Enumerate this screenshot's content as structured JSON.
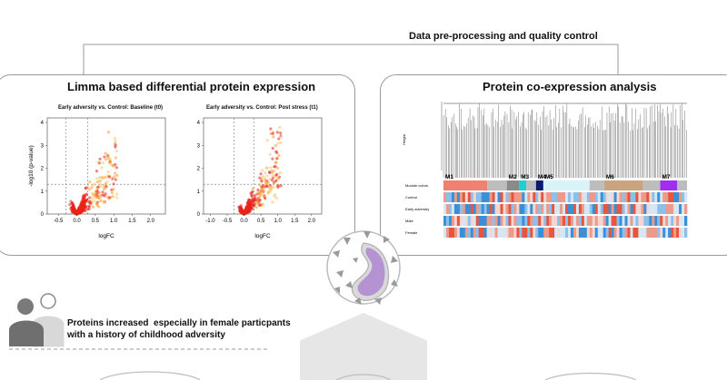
{
  "header": {
    "title": "Data pre-processing and quality control"
  },
  "left_panel": {
    "title": "Limma based differential protein expression",
    "plot1": {
      "title": "Early adversity vs. Control: Baseline (t0)"
    },
    "plot2": {
      "title": "Early adversity vs. Control: Post stress (t1)"
    },
    "ylabel": "-log10 (p-value)",
    "xlabel": "logFC"
  },
  "right_panel": {
    "title": "Protein co-expression analysis",
    "height_label": "Height",
    "row_labels": [
      "Module colors",
      "Control",
      "Early adversity",
      "Male",
      "Female"
    ],
    "modules": [
      "M1",
      "M2",
      "M3",
      "M4",
      "M5",
      "M6",
      "M7"
    ]
  },
  "bottom": {
    "text_line1": "Proteins increased  especially in female particpants",
    "text_line2": "with a history of childhood adversity"
  },
  "chart_data": [
    {
      "type": "scatter",
      "title": "Early adversity vs. Control: Baseline (t0)",
      "xlabel": "logFC",
      "ylabel": "-log10 (p-value)",
      "xlim": [
        -0.8,
        2.4
      ],
      "ylim": [
        0,
        4.2
      ],
      "xticks": [
        -0.5,
        0.0,
        0.5,
        1.0,
        1.5,
        2.0
      ],
      "yticks": [
        0,
        1,
        2,
        3,
        4
      ],
      "threshold_y": 1.3,
      "threshold_x": [
        -0.3,
        0.3
      ]
    },
    {
      "type": "scatter",
      "title": "Early adversity vs. Control: Post stress (t1)",
      "xlabel": "logFC",
      "ylabel": "",
      "xlim": [
        -1.2,
        2.3
      ],
      "ylim": [
        0,
        4.2
      ],
      "xticks": [
        -1.0,
        -0.5,
        0.0,
        0.5,
        1.0,
        1.5,
        2.0
      ],
      "yticks": [
        0,
        1,
        2,
        3,
        4
      ],
      "threshold_y": 1.3,
      "threshold_x": [
        -0.3,
        0.3
      ]
    }
  ],
  "colors": {
    "red": "#e8251c",
    "orange": "#f59a2a",
    "yellow": "#f8c26a",
    "module_M1": "#f08070",
    "module_M2": "#8a8a8a",
    "module_M3": "#19d0d8",
    "module_M4": "#0a1a6e",
    "module_M5": "#d8f4f8",
    "module_M6": "#c9a47d",
    "module_M7": "#a02df0"
  }
}
